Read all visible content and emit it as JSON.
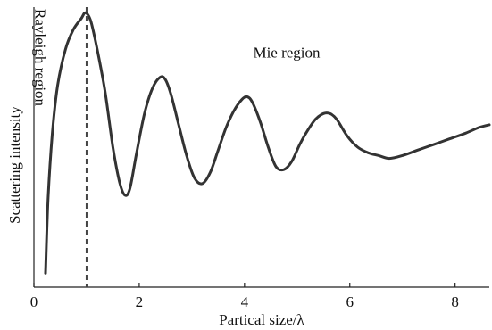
{
  "chart_data": {
    "type": "line",
    "title": "",
    "xlabel": "Partical size/λ",
    "ylabel": "Scattering intensity",
    "xlim": [
      0,
      8.65
    ],
    "ylim": [
      0,
      1
    ],
    "x_ticks": [
      0,
      2,
      4,
      6,
      8
    ],
    "x_tick_labels": [
      "0",
      "2",
      "4",
      "6",
      "8"
    ],
    "y_ticks_labeled": false,
    "grid": false,
    "series": [
      {
        "x": [
          0.22,
          0.27,
          0.35,
          0.45,
          0.6,
          0.75,
          0.9,
          0.98,
          1.08,
          1.2,
          1.35,
          1.5,
          1.62,
          1.72,
          1.82,
          1.95,
          2.1,
          2.25,
          2.4,
          2.5,
          2.6,
          2.75,
          2.9,
          3.05,
          3.2,
          3.35,
          3.5,
          3.65,
          3.8,
          3.95,
          4.05,
          4.15,
          4.3,
          4.45,
          4.6,
          4.75,
          4.9,
          5.05,
          5.2,
          5.35,
          5.5,
          5.62,
          5.75,
          5.95,
          6.15,
          6.35,
          6.55,
          6.75,
          7.0,
          7.3,
          7.6,
          7.9,
          8.2,
          8.45,
          8.65
        ],
        "y": [
          0.05,
          0.32,
          0.55,
          0.72,
          0.85,
          0.92,
          0.96,
          0.98,
          0.95,
          0.85,
          0.7,
          0.5,
          0.38,
          0.33,
          0.35,
          0.48,
          0.62,
          0.71,
          0.75,
          0.74,
          0.69,
          0.58,
          0.47,
          0.39,
          0.37,
          0.41,
          0.49,
          0.57,
          0.63,
          0.67,
          0.68,
          0.66,
          0.59,
          0.5,
          0.43,
          0.42,
          0.45,
          0.51,
          0.56,
          0.6,
          0.62,
          0.62,
          0.6,
          0.54,
          0.5,
          0.48,
          0.47,
          0.46,
          0.47,
          0.49,
          0.51,
          0.53,
          0.55,
          0.57,
          0.58
        ]
      }
    ],
    "reference_lines": [
      {
        "axis": "x",
        "value": 1,
        "style": "dashed"
      }
    ],
    "annotations": [
      {
        "text": "Rayleigh region",
        "x": 0.3,
        "y": 0.98,
        "rotation": 90
      },
      {
        "text": "Mie region",
        "x": 4.8,
        "y": 0.82
      }
    ]
  }
}
